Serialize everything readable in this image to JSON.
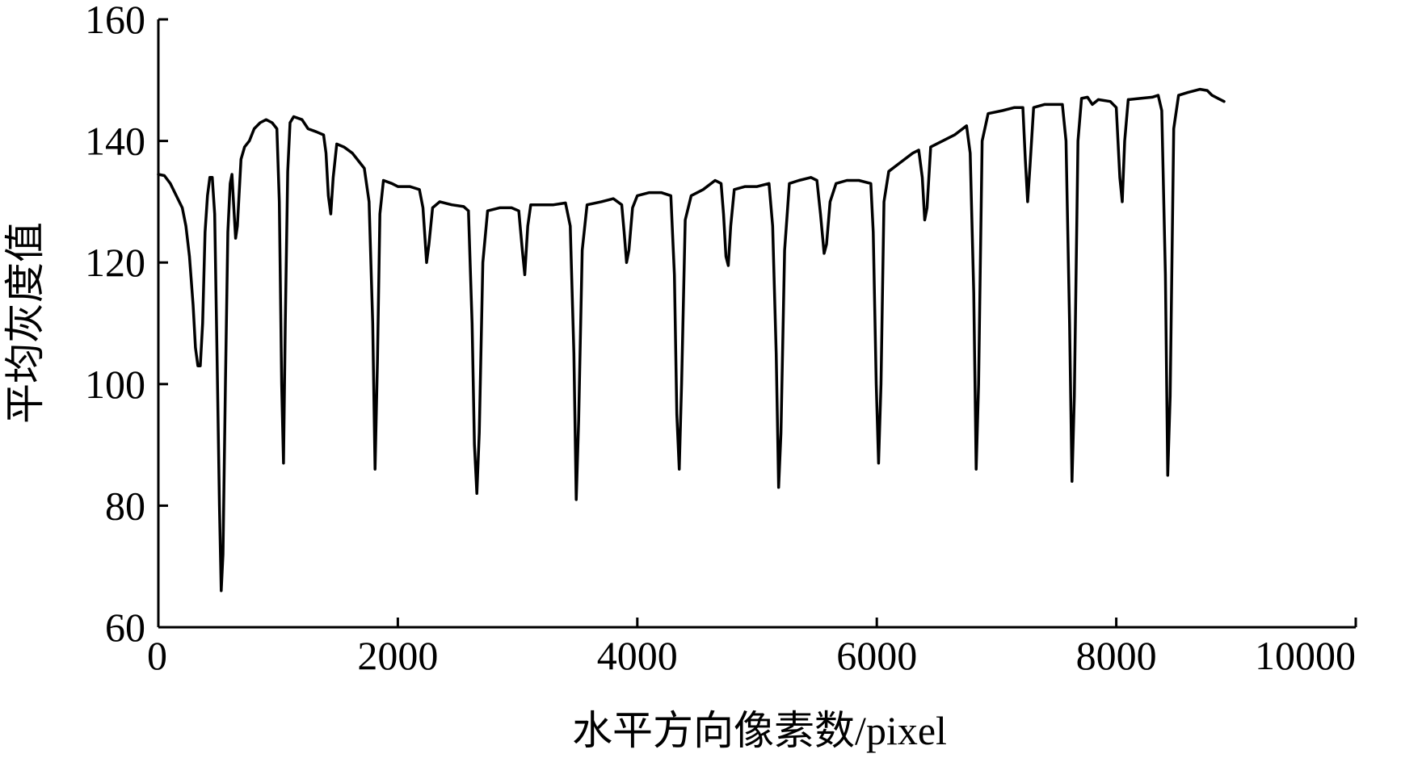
{
  "chart_data": {
    "type": "line",
    "xlabel": "水平方向像素数/pixel",
    "ylabel": "平均灰度值",
    "xlim": [
      0,
      10000
    ],
    "ylim": [
      60,
      160
    ],
    "xticks": [
      0,
      2000,
      4000,
      6000,
      8000,
      10000
    ],
    "yticks": [
      60,
      80,
      100,
      120,
      140,
      160
    ],
    "xtick_labels": [
      "0",
      "2000",
      "4000",
      "6000",
      "8000",
      "10000"
    ],
    "ytick_labels": [
      "60",
      "80",
      "100",
      "120",
      "140",
      "160"
    ],
    "grid": false,
    "series": [
      {
        "color": "#000000",
        "points": [
          [
            0,
            134.5
          ],
          [
            50,
            134.3
          ],
          [
            100,
            133
          ],
          [
            150,
            131
          ],
          [
            200,
            129
          ],
          [
            230,
            126
          ],
          [
            260,
            121
          ],
          [
            290,
            113
          ],
          [
            310,
            106
          ],
          [
            330,
            103
          ],
          [
            350,
            103
          ],
          [
            370,
            110
          ],
          [
            390,
            125
          ],
          [
            410,
            131
          ],
          [
            430,
            134
          ],
          [
            450,
            134
          ],
          [
            470,
            128
          ],
          [
            490,
            105
          ],
          [
            510,
            80
          ],
          [
            525,
            66
          ],
          [
            540,
            72
          ],
          [
            560,
            100
          ],
          [
            580,
            125
          ],
          [
            600,
            133
          ],
          [
            615,
            134.5
          ],
          [
            630,
            129
          ],
          [
            645,
            124
          ],
          [
            660,
            126
          ],
          [
            690,
            137
          ],
          [
            720,
            139
          ],
          [
            760,
            140
          ],
          [
            800,
            142
          ],
          [
            850,
            143
          ],
          [
            900,
            143.5
          ],
          [
            950,
            143
          ],
          [
            990,
            142
          ],
          [
            1010,
            130
          ],
          [
            1030,
            100
          ],
          [
            1045,
            87
          ],
          [
            1060,
            110
          ],
          [
            1080,
            135
          ],
          [
            1100,
            143
          ],
          [
            1130,
            144
          ],
          [
            1200,
            143.5
          ],
          [
            1250,
            142
          ],
          [
            1320,
            141.5
          ],
          [
            1380,
            141
          ],
          [
            1400,
            138
          ],
          [
            1420,
            131
          ],
          [
            1440,
            128
          ],
          [
            1460,
            134
          ],
          [
            1490,
            139.5
          ],
          [
            1550,
            139
          ],
          [
            1620,
            138
          ],
          [
            1680,
            136.5
          ],
          [
            1720,
            135.5
          ],
          [
            1760,
            130
          ],
          [
            1790,
            110
          ],
          [
            1810,
            86
          ],
          [
            1830,
            104
          ],
          [
            1850,
            128
          ],
          [
            1880,
            133.5
          ],
          [
            1950,
            133
          ],
          [
            2000,
            132.5
          ],
          [
            2100,
            132.5
          ],
          [
            2180,
            132
          ],
          [
            2210,
            129
          ],
          [
            2240,
            120
          ],
          [
            2260,
            123
          ],
          [
            2290,
            129
          ],
          [
            2350,
            130
          ],
          [
            2450,
            129.5
          ],
          [
            2550,
            129.2
          ],
          [
            2590,
            128.5
          ],
          [
            2620,
            110
          ],
          [
            2640,
            90
          ],
          [
            2660,
            82
          ],
          [
            2680,
            92
          ],
          [
            2710,
            120
          ],
          [
            2750,
            128.5
          ],
          [
            2850,
            129
          ],
          [
            2950,
            129
          ],
          [
            3010,
            128.5
          ],
          [
            3040,
            122
          ],
          [
            3060,
            118
          ],
          [
            3085,
            126
          ],
          [
            3110,
            129.5
          ],
          [
            3200,
            129.5
          ],
          [
            3300,
            129.5
          ],
          [
            3400,
            129.8
          ],
          [
            3440,
            126
          ],
          [
            3470,
            105
          ],
          [
            3490,
            81
          ],
          [
            3510,
            94
          ],
          [
            3540,
            122
          ],
          [
            3580,
            129.5
          ],
          [
            3700,
            130
          ],
          [
            3800,
            130.5
          ],
          [
            3870,
            129.5
          ],
          [
            3890,
            125
          ],
          [
            3910,
            120
          ],
          [
            3930,
            122
          ],
          [
            3960,
            129
          ],
          [
            4000,
            131
          ],
          [
            4100,
            131.5
          ],
          [
            4200,
            131.5
          ],
          [
            4280,
            131
          ],
          [
            4310,
            118
          ],
          [
            4330,
            95
          ],
          [
            4350,
            86
          ],
          [
            4370,
            100
          ],
          [
            4400,
            127
          ],
          [
            4450,
            131
          ],
          [
            4550,
            132
          ],
          [
            4650,
            133.5
          ],
          [
            4700,
            133
          ],
          [
            4720,
            128
          ],
          [
            4740,
            121
          ],
          [
            4760,
            119.5
          ],
          [
            4780,
            126
          ],
          [
            4810,
            132
          ],
          [
            4900,
            132.5
          ],
          [
            5000,
            132.5
          ],
          [
            5100,
            133
          ],
          [
            5130,
            126
          ],
          [
            5160,
            105
          ],
          [
            5180,
            83
          ],
          [
            5200,
            92
          ],
          [
            5230,
            122
          ],
          [
            5270,
            133
          ],
          [
            5350,
            133.5
          ],
          [
            5450,
            134
          ],
          [
            5500,
            133.5
          ],
          [
            5530,
            128
          ],
          [
            5560,
            121.5
          ],
          [
            5580,
            123
          ],
          [
            5610,
            130
          ],
          [
            5660,
            133
          ],
          [
            5750,
            133.5
          ],
          [
            5850,
            133.5
          ],
          [
            5950,
            133
          ],
          [
            5970,
            125
          ],
          [
            5995,
            100
          ],
          [
            6015,
            87
          ],
          [
            6035,
            100
          ],
          [
            6060,
            130
          ],
          [
            6100,
            135
          ],
          [
            6200,
            136.5
          ],
          [
            6300,
            138
          ],
          [
            6350,
            138.5
          ],
          [
            6380,
            134
          ],
          [
            6400,
            127
          ],
          [
            6420,
            129
          ],
          [
            6450,
            139
          ],
          [
            6550,
            140
          ],
          [
            6650,
            141
          ],
          [
            6750,
            142.5
          ],
          [
            6780,
            138
          ],
          [
            6810,
            115
          ],
          [
            6830,
            86
          ],
          [
            6850,
            100
          ],
          [
            6880,
            140
          ],
          [
            6930,
            144.5
          ],
          [
            7050,
            145
          ],
          [
            7150,
            145.5
          ],
          [
            7220,
            145.5
          ],
          [
            7240,
            137
          ],
          [
            7260,
            130
          ],
          [
            7280,
            136
          ],
          [
            7310,
            145.5
          ],
          [
            7400,
            146
          ],
          [
            7500,
            146
          ],
          [
            7550,
            146
          ],
          [
            7580,
            140
          ],
          [
            7610,
            110
          ],
          [
            7630,
            84
          ],
          [
            7650,
            98
          ],
          [
            7680,
            140
          ],
          [
            7710,
            147
          ],
          [
            7760,
            147.2
          ],
          [
            7800,
            146
          ],
          [
            7850,
            146.8
          ],
          [
            7950,
            146.5
          ],
          [
            8000,
            145.5
          ],
          [
            8030,
            134
          ],
          [
            8050,
            130
          ],
          [
            8070,
            140
          ],
          [
            8100,
            146.8
          ],
          [
            8200,
            147
          ],
          [
            8300,
            147.2
          ],
          [
            8350,
            147.5
          ],
          [
            8380,
            145
          ],
          [
            8410,
            118
          ],
          [
            8430,
            85
          ],
          [
            8450,
            98
          ],
          [
            8480,
            142
          ],
          [
            8520,
            147.5
          ],
          [
            8600,
            148
          ],
          [
            8700,
            148.5
          ],
          [
            8760,
            148.3
          ],
          [
            8800,
            147.5
          ],
          [
            8850,
            147
          ],
          [
            8900,
            146.5
          ]
        ]
      }
    ]
  }
}
